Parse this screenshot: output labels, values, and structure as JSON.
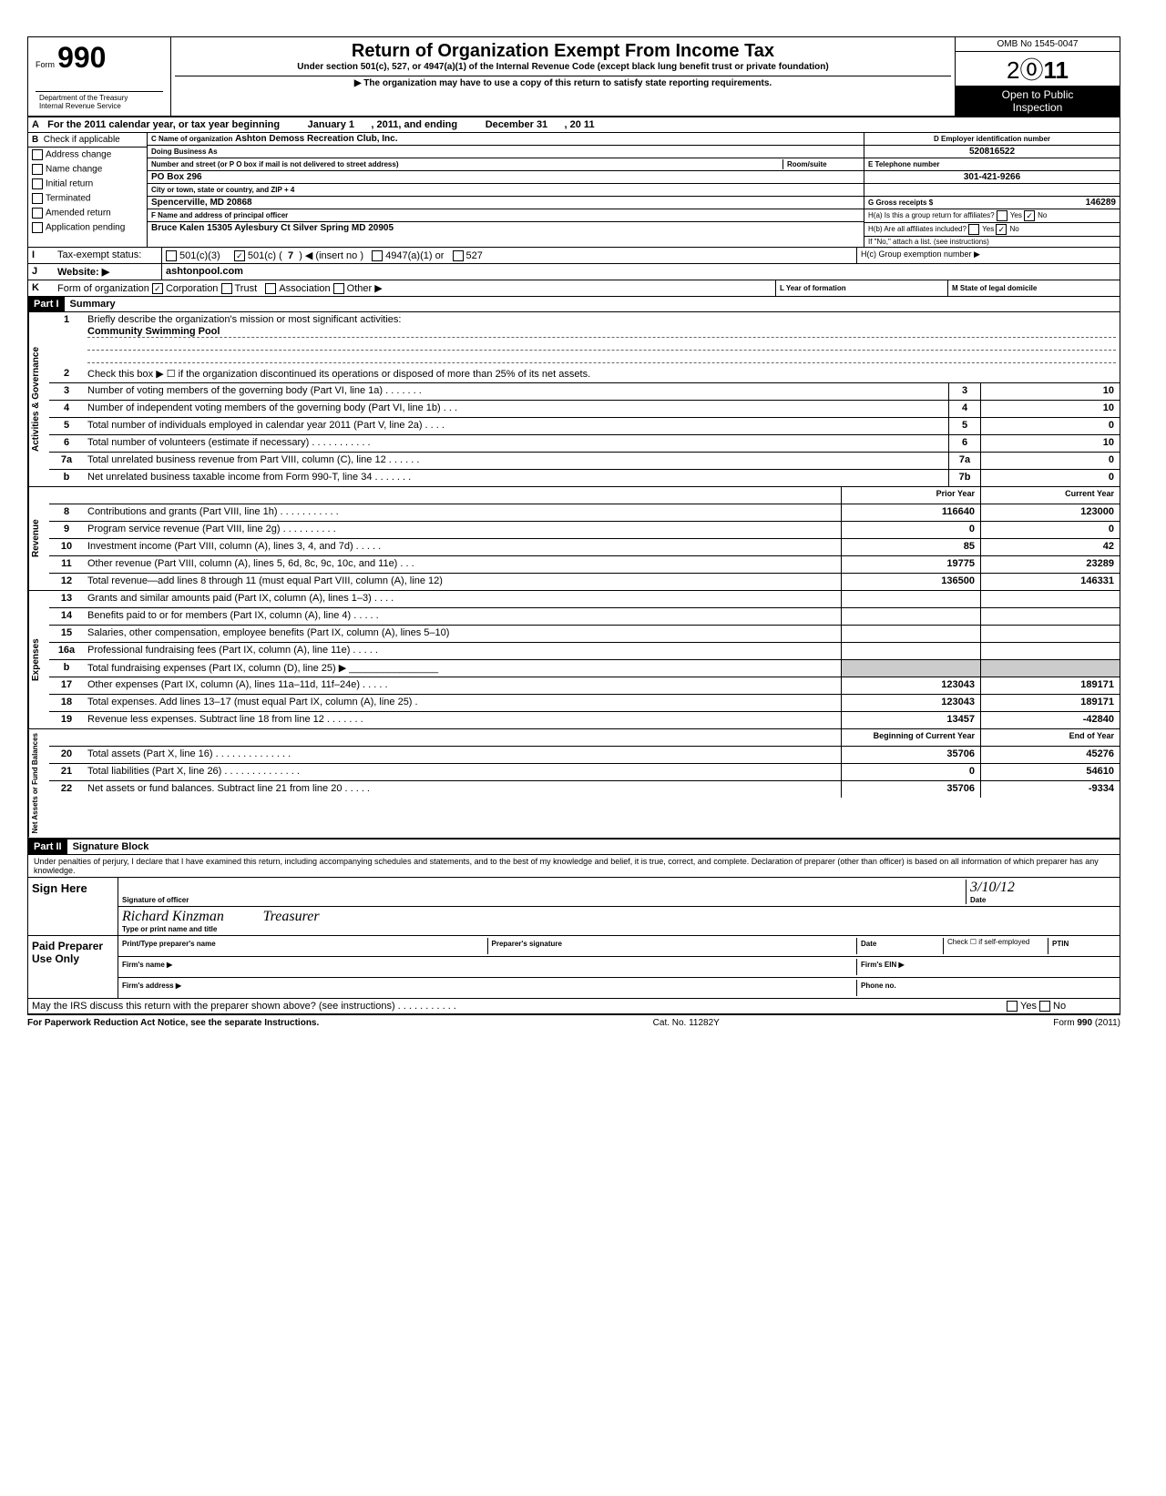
{
  "header": {
    "form_label": "Form",
    "form_number": "990",
    "main_title": "Return of Organization Exempt From Income Tax",
    "subtitle1": "Under section 501(c), 527, or 4947(a)(1) of the Internal Revenue Code (except black lung benefit trust or private foundation)",
    "subtitle2": "▶ The organization may have to use a copy of this return to satisfy state reporting requirements.",
    "dept": "Department of the Treasury",
    "irs": "Internal Revenue Service",
    "omb": "OMB No  1545-0047",
    "year": "2011",
    "open": "Open to Public",
    "inspection": "Inspection"
  },
  "section_a": {
    "label": "A",
    "text": "For the 2011 calendar year, or tax year beginning",
    "begin": "January 1",
    "mid": ", 2011, and ending",
    "end": "December 31",
    "year_suffix": ", 20  11"
  },
  "section_b": {
    "label": "B",
    "check_label": "Check if applicable",
    "items": [
      "Address change",
      "Name change",
      "Initial return",
      "Terminated",
      "Amended return",
      "Application pending"
    ]
  },
  "section_c": {
    "name_label": "C Name of organization",
    "name": "Ashton Demoss Recreation Club, Inc.",
    "dba_label": "Doing Business As",
    "dba": "",
    "addr_label": "Number and street (or P O  box if mail is not delivered to street address)",
    "room_label": "Room/suite",
    "addr": "PO Box 296",
    "city_label": "City or town, state or country, and ZIP + 4",
    "city": "Spencerville, MD 20868",
    "officer_label": "F Name and address of principal officer",
    "officer": "Bruce Kalen 15305 Aylesbury Ct Silver Spring MD 20905"
  },
  "section_d": {
    "label": "D Employer identification number",
    "value": "520816522"
  },
  "section_e": {
    "label": "E Telephone number",
    "value": "301-421-9266"
  },
  "section_g": {
    "label": "G Gross receipts $",
    "value": "146289"
  },
  "section_h": {
    "ha": "H(a) Is this a group return for affiliates?",
    "hb": "H(b) Are all affiliates included?",
    "note": "If \"No,\" attach a list. (see instructions)",
    "hc": "H(c) Group exemption number ▶",
    "yes": "Yes",
    "no": "No"
  },
  "section_i": {
    "label": "I",
    "text": "Tax-exempt status:",
    "opt1": "501(c)(3)",
    "opt2": "501(c) (",
    "opt2num": "7",
    "opt2end": ") ◀ (insert no )",
    "opt3": "4947(a)(1) or",
    "opt4": "527"
  },
  "section_j": {
    "label": "J",
    "text": "Website: ▶",
    "value": "ashtonpool.com"
  },
  "section_k": {
    "label": "K",
    "text": "Form of organization",
    "opts": [
      "Corporation",
      "Trust",
      "Association",
      "Other ▶"
    ],
    "l_label": "L Year of formation",
    "m_label": "M State of legal domicile"
  },
  "part1": {
    "header": "Part I",
    "title": "Summary",
    "activities_label": "Activities & Governance",
    "revenue_label": "Revenue",
    "expenses_label": "Expenses",
    "netassets_label": "Net Assets or Fund Balances",
    "line1_label": "Briefly describe the organization's mission or most significant activities:",
    "line1_value": "Community Swimming Pool",
    "line2": "Check this box ▶ ☐ if the organization discontinued its operations or disposed of more than 25% of its net assets.",
    "prior_year": "Prior Year",
    "current_year": "Current Year",
    "begin_year": "Beginning of Current Year",
    "end_year": "End of Year",
    "lines_gov": [
      {
        "num": "3",
        "desc": "Number of voting members of the governing body (Part VI, line 1a) .   .   .   .   .   .   .",
        "box": "3",
        "val": "10"
      },
      {
        "num": "4",
        "desc": "Number of independent voting members of the governing body (Part VI, line 1b)   .   .   .",
        "box": "4",
        "val": "10"
      },
      {
        "num": "5",
        "desc": "Total number of individuals employed in calendar year 2011 (Part V, line 2a)    .   .   .   .",
        "box": "5",
        "val": "0"
      },
      {
        "num": "6",
        "desc": "Total number of volunteers (estimate if necessary)    .   .   .   .   .   .   .   .   .   .   .",
        "box": "6",
        "val": "10"
      },
      {
        "num": "7a",
        "desc": "Total unrelated business revenue from Part VIII, column (C), line 12   .   .   .   .   .   .",
        "box": "7a",
        "val": "0"
      },
      {
        "num": "b",
        "desc": "Net unrelated business taxable income from Form 990-T, line 34   .   .   .   .   .   .   .",
        "box": "7b",
        "val": "0"
      }
    ],
    "lines_rev": [
      {
        "num": "8",
        "desc": "Contributions and grants (Part VIII, line 1h) .   .   .   .   .   .   .   .   .   .   .",
        "py": "116640",
        "cy": "123000"
      },
      {
        "num": "9",
        "desc": "Program service revenue (Part VIII, line 2g)    .   .   .   .   .   .   .   .   .   .",
        "py": "0",
        "cy": "0"
      },
      {
        "num": "10",
        "desc": "Investment income (Part VIII, column (A), lines 3, 4, and 7d)   .   .   .   .   .",
        "py": "85",
        "cy": "42"
      },
      {
        "num": "11",
        "desc": "Other revenue (Part VIII, column (A), lines 5, 6d, 8c, 9c, 10c, and 11e) .   .   .",
        "py": "19775",
        "cy": "23289"
      },
      {
        "num": "12",
        "desc": "Total revenue—add lines 8 through 11 (must equal Part VIII, column (A), line 12)",
        "py": "136500",
        "cy": "146331"
      }
    ],
    "lines_exp": [
      {
        "num": "13",
        "desc": "Grants and similar amounts paid (Part IX, column (A), lines 1–3)   .   .   .   .",
        "py": "",
        "cy": ""
      },
      {
        "num": "14",
        "desc": "Benefits paid to or for members (Part IX, column (A), line 4)   .   .   .   .   .",
        "py": "",
        "cy": ""
      },
      {
        "num": "15",
        "desc": "Salaries, other compensation, employee benefits (Part IX, column (A), lines 5–10)",
        "py": "",
        "cy": ""
      },
      {
        "num": "16a",
        "desc": "Professional fundraising fees (Part IX, column (A), line 11e)   .   .   .   .   .",
        "py": "",
        "cy": ""
      },
      {
        "num": "b",
        "desc": "Total fundraising expenses (Part IX, column (D), line 25) ▶ ________________",
        "py": "shaded",
        "cy": "shaded"
      },
      {
        "num": "17",
        "desc": "Other expenses (Part IX, column (A), lines 11a–11d, 11f–24e)   .   .   .   .   .",
        "py": "123043",
        "cy": "189171"
      },
      {
        "num": "18",
        "desc": "Total expenses. Add lines 13–17 (must equal Part IX, column (A), line 25)   .",
        "py": "123043",
        "cy": "189171"
      },
      {
        "num": "19",
        "desc": "Revenue less expenses. Subtract line 18 from line 12   .   .   .   .   .   .   .",
        "py": "13457",
        "cy": "-42840"
      }
    ],
    "lines_net": [
      {
        "num": "20",
        "desc": "Total assets (Part X, line 16)    .   .   .   .   .   .   .   .   .   .   .   .   .   .",
        "py": "35706",
        "cy": "45276"
      },
      {
        "num": "21",
        "desc": "Total liabilities (Part X, line 26) .   .   .   .   .   .   .   .   .   .   .   .   .   .",
        "py": "0",
        "cy": "54610"
      },
      {
        "num": "22",
        "desc": "Net assets or fund balances. Subtract line 21 from line 20    .   .   .   .   .",
        "py": "35706",
        "cy": "-9334"
      }
    ]
  },
  "part2": {
    "header": "Part II",
    "title": "Signature Block",
    "perjury": "Under penalties of perjury, I declare that I have examined this return, including accompanying schedules and statements, and to the best of my knowledge  and belief, it is true, correct, and complete. Declaration of preparer (other than officer) is based on all information of which preparer has any knowledge.",
    "sign_here": "Sign Here",
    "sig_officer": "Signature of officer",
    "date_label": "Date",
    "date_value": "3/10/12",
    "name_title": "Type or print name and title",
    "name_value": "Richard Kinzman",
    "title_value": "Treasurer",
    "paid": "Paid Preparer Use Only",
    "prep_name": "Print/Type preparer's name",
    "prep_sig": "Preparer's signature",
    "check_self": "Check ☐ if self-employed",
    "ptin": "PTIN",
    "firm_name": "Firm's name   ▶",
    "firm_ein": "Firm's EIN ▶",
    "firm_addr": "Firm's address ▶",
    "phone": "Phone no.",
    "irs_discuss": "May the IRS discuss this return with the preparer shown above? (see instructions)   .   .   .   .   .   .   .   .   .   .   .",
    "yes": "Yes",
    "no": "No"
  },
  "footer": {
    "left": "For Paperwork Reduction Act Notice, see the separate Instructions.",
    "mid": "Cat. No. 11282Y",
    "right": "Form 990 (2011)"
  }
}
